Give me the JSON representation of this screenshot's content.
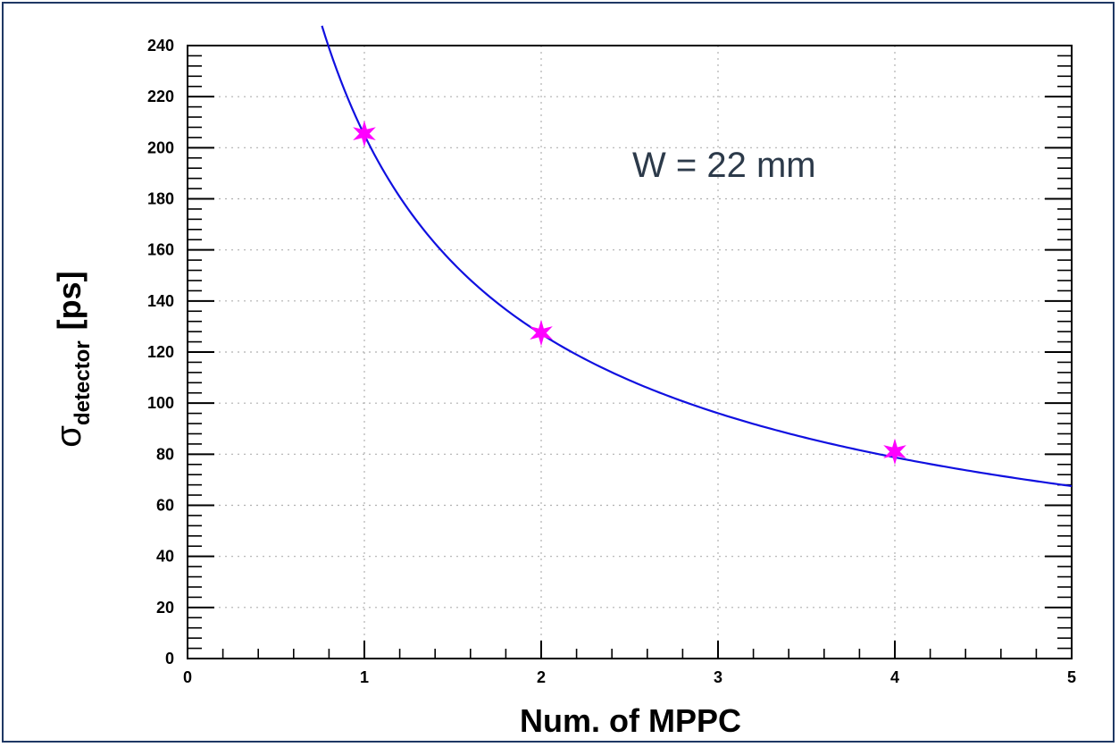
{
  "chart_data": {
    "type": "scatter",
    "xlabel": "Num. of MPPC",
    "ylabel": {
      "main": "σ",
      "subscript": "detector",
      "unit": "[ps]"
    },
    "xlim": [
      0,
      5
    ],
    "ylim": [
      0,
      240
    ],
    "xticks": [
      "0",
      "1",
      "2",
      "3",
      "4",
      "5"
    ],
    "yticks": [
      "0",
      "20",
      "40",
      "60",
      "80",
      "100",
      "120",
      "140",
      "160",
      "180",
      "200",
      "220",
      "240"
    ],
    "grid": true,
    "annotation": "W = 22 mm",
    "series": [
      {
        "marker": "star",
        "color": "#ff00ff",
        "x": [
          1,
          2,
          4
        ],
        "y": [
          205.5,
          127.5,
          81
        ]
      }
    ],
    "fit": {
      "color": "#1010e0",
      "x_range": [
        0.76,
        5
      ],
      "form": "a/x^b",
      "a": 205,
      "b": 0.69
    }
  }
}
